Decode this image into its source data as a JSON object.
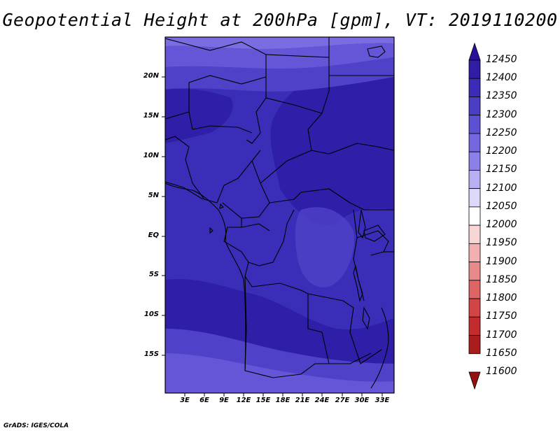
{
  "title": "Geopotential Height at 200hPa [gpm], VT: 2019110200",
  "credit": "GrADS: IGES/COLA",
  "map": {
    "lat_labels": [
      "20N",
      "15N",
      "10N",
      "5N",
      "EQ",
      "5S",
      "10S",
      "15S"
    ],
    "lon_labels": [
      "3E",
      "6E",
      "9E",
      "12E",
      "15E",
      "18E",
      "21E",
      "24E",
      "27E",
      "30E",
      "33E"
    ],
    "field_colors": {
      "dark": "#2e1ea8",
      "mid": "#3a2eb8",
      "light": "#4f42c8",
      "lighter": "#6456d6",
      "lightest": "#7a6de2"
    },
    "border_color": "#000000"
  },
  "colorbar": {
    "levels": [
      "12450",
      "12400",
      "12350",
      "12300",
      "12250",
      "12200",
      "12150",
      "12100",
      "12050",
      "12000",
      "11950",
      "11900",
      "11850",
      "11800",
      "11750",
      "11700",
      "11650",
      "11600"
    ],
    "colors": [
      "#2a0f9a",
      "#2f1da6",
      "#3a2cb8",
      "#4a3ec4",
      "#5c51d2",
      "#7366de",
      "#8b80e8",
      "#b7b0f2",
      "#dcdaf8",
      "#ffffff",
      "#f9d6d6",
      "#f3b0b0",
      "#e98a8a",
      "#df6464",
      "#d34444",
      "#c22c2c",
      "#ab1c1c",
      "#961010"
    ]
  }
}
